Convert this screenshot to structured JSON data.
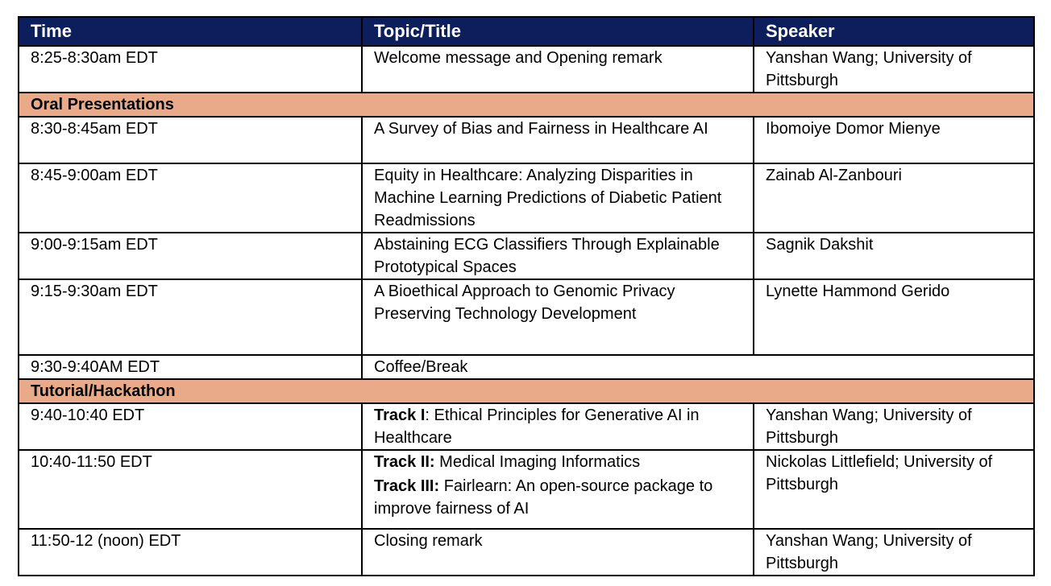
{
  "header": {
    "time": "Time",
    "topic": "Topic/Title",
    "speaker": "Speaker"
  },
  "rows": [
    {
      "time": "8:25-8:30am EDT",
      "topic": "Welcome message and Opening remark",
      "speaker": "Yanshan Wang; University of Pittsburgh"
    },
    {
      "time": "8:30-8:45am EDT",
      "topic": "A Survey of Bias and Fairness in Healthcare AI",
      "speaker": "Ibomoiye Domor Mienye"
    },
    {
      "time": "8:45-9:00am EDT",
      "topic": "Equity in Healthcare: Analyzing Disparities in Machine Learning Predictions of Diabetic Patient Readmissions",
      "speaker": "Zainab Al-Zanbouri"
    },
    {
      "time": "9:00-9:15am EDT",
      "topic": "Abstaining ECG Classifiers Through Explainable Prototypical Spaces",
      "speaker": "Sagnik Dakshit"
    },
    {
      "time": "9:15-9:30am EDT",
      "topic": "A Bioethical Approach to Genomic Privacy Preserving Technology Development",
      "speaker": "Lynette Hammond Gerido"
    },
    {
      "time": "9:30-9:40AM EDT",
      "topic": "Coffee/Break"
    },
    {
      "time": "9:40-10:40 EDT",
      "track_label": "Track I",
      "track_text": ": Ethical Principles for Generative AI in Healthcare",
      "speaker": "Yanshan Wang; University of Pittsburgh"
    },
    {
      "time": "10:40-11:50 EDT",
      "track2_label": "Track II:",
      "track2_text": " Medical Imaging Informatics",
      "track3_label": "Track III:",
      "track3_text": " Fairlearn: An open-source package to improve fairness of AI",
      "speaker": "Nickolas Littlefield; University of Pittsburgh"
    },
    {
      "time": "11:50-12 (noon) EDT",
      "topic": "Closing remark",
      "speaker": "Yanshan Wang; University of Pittsburgh"
    }
  ],
  "sections": {
    "oral": "Oral Presentations",
    "tutorial": "Tutorial/Hackathon"
  },
  "colors": {
    "header_bg": "#0c1f5c",
    "section_bg": "#e8aa88"
  }
}
